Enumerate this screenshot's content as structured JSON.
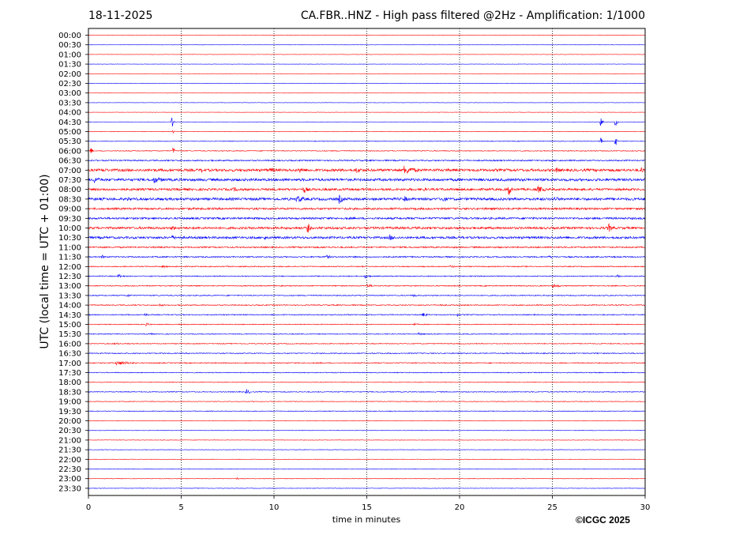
{
  "header": {
    "date": "18-11-2025",
    "title": "CA.FBR..HNZ - High pass filtered @2Hz - Amplification: 1/1000"
  },
  "footer": {
    "credit": "©ICGC 2025"
  },
  "colors": {
    "red": "#ff0000",
    "blue": "#0000ff",
    "frame": "#000000"
  },
  "chart_data": {
    "type": "line",
    "title": "CA.FBR..HNZ - High pass filtered @2Hz - Amplification: 1/1000",
    "xlabel": "time in minutes",
    "ylabel": "UTC (local time = UTC + 01:00)",
    "xlim": [
      0,
      30
    ],
    "xticks": [
      0,
      5,
      10,
      15,
      20,
      25,
      30
    ],
    "vertical_dotted_gridlines": [
      5,
      10,
      15,
      20,
      25
    ],
    "rows": [
      "00:00",
      "00:30",
      "01:00",
      "01:30",
      "02:00",
      "02:30",
      "03:00",
      "03:30",
      "04:00",
      "04:30",
      "05:00",
      "05:30",
      "06:00",
      "06:30",
      "07:00",
      "07:30",
      "08:00",
      "08:30",
      "09:00",
      "09:30",
      "10:00",
      "10:30",
      "11:00",
      "11:30",
      "12:00",
      "12:30",
      "13:00",
      "13:30",
      "14:00",
      "14:30",
      "15:00",
      "15:30",
      "16:00",
      "16:30",
      "17:00",
      "17:30",
      "18:00",
      "18:30",
      "19:00",
      "19:30",
      "20:00",
      "20:30",
      "21:00",
      "21:30",
      "22:00",
      "22:30",
      "23:00",
      "23:30"
    ],
    "row_colors": [
      "red",
      "blue"
    ],
    "row_noise": [
      0.2,
      0.2,
      0.2,
      0.2,
      0.2,
      0.2,
      0.2,
      0.2,
      0.2,
      0.2,
      0.3,
      0.4,
      0.5,
      0.8,
      1.6,
      1.6,
      1.4,
      1.6,
      1.2,
      1.2,
      1.4,
      1.4,
      0.9,
      0.8,
      0.6,
      0.6,
      0.6,
      0.6,
      0.6,
      0.6,
      0.5,
      0.5,
      0.5,
      0.6,
      0.6,
      0.5,
      0.4,
      0.5,
      0.4,
      0.4,
      0.3,
      0.3,
      0.3,
      0.3,
      0.3,
      0.3,
      0.3,
      0.3
    ],
    "events": [
      {
        "row": "04:30",
        "t": 4.5,
        "amp": 8,
        "dur": 0.1
      },
      {
        "row": "05:00",
        "t": 4.55,
        "amp": 4,
        "dur": 0.1
      },
      {
        "row": "06:00",
        "t": 0.1,
        "amp": 6,
        "dur": 0.15
      },
      {
        "row": "06:00",
        "t": 4.55,
        "amp": 9,
        "dur": 0.1
      },
      {
        "row": "04:30",
        "t": 27.6,
        "amp": 9,
        "dur": 0.1
      },
      {
        "row": "05:30",
        "t": 27.6,
        "amp": 9,
        "dur": 0.1
      },
      {
        "row": "04:30",
        "t": 28.4,
        "amp": 9,
        "dur": 0.1
      },
      {
        "row": "05:30",
        "t": 28.4,
        "amp": 9,
        "dur": 0.1
      },
      {
        "row": "07:00",
        "t": 0.8,
        "amp": 5,
        "dur": 0.2
      },
      {
        "row": "07:00",
        "t": 6.1,
        "amp": 4,
        "dur": 0.3
      },
      {
        "row": "07:00",
        "t": 9.8,
        "amp": 4,
        "dur": 0.6
      },
      {
        "row": "07:00",
        "t": 11.4,
        "amp": 5,
        "dur": 0.3
      },
      {
        "row": "07:00",
        "t": 14.4,
        "amp": 4,
        "dur": 0.8
      },
      {
        "row": "07:00",
        "t": 17.0,
        "amp": 6,
        "dur": 1.0
      },
      {
        "row": "07:00",
        "t": 19.3,
        "amp": 3,
        "dur": 0.3
      },
      {
        "row": "07:00",
        "t": 25.2,
        "amp": 4,
        "dur": 0.4
      },
      {
        "row": "07:00",
        "t": 29.8,
        "amp": 6,
        "dur": 0.2
      },
      {
        "row": "07:30",
        "t": 0.3,
        "amp": 5,
        "dur": 0.5
      },
      {
        "row": "07:30",
        "t": 3.5,
        "amp": 5,
        "dur": 0.8
      },
      {
        "row": "08:00",
        "t": 7.8,
        "amp": 3,
        "dur": 0.8
      },
      {
        "row": "08:00",
        "t": 11.6,
        "amp": 5,
        "dur": 0.4
      },
      {
        "row": "08:00",
        "t": 18.0,
        "amp": 3,
        "dur": 0.5
      },
      {
        "row": "08:00",
        "t": 22.6,
        "amp": 13,
        "dur": 0.2
      },
      {
        "row": "08:00",
        "t": 24.2,
        "amp": 5,
        "dur": 0.6
      },
      {
        "row": "08:30",
        "t": 2.1,
        "amp": 3,
        "dur": 0.6
      },
      {
        "row": "08:30",
        "t": 11.2,
        "amp": 5,
        "dur": 0.8
      },
      {
        "row": "08:30",
        "t": 13.5,
        "amp": 6,
        "dur": 0.4
      },
      {
        "row": "08:30",
        "t": 17.0,
        "amp": 5,
        "dur": 0.3
      },
      {
        "row": "08:30",
        "t": 19.0,
        "amp": 5,
        "dur": 0.5
      },
      {
        "row": "08:30",
        "t": 25.1,
        "amp": 4,
        "dur": 0.5
      },
      {
        "row": "09:00",
        "t": 5.4,
        "amp": 2,
        "dur": 1.0
      },
      {
        "row": "09:00",
        "t": 17.5,
        "amp": 2,
        "dur": 1.0
      },
      {
        "row": "10:00",
        "t": 4.5,
        "amp": 4,
        "dur": 0.3
      },
      {
        "row": "10:00",
        "t": 11.8,
        "amp": 9,
        "dur": 0.2
      },
      {
        "row": "10:00",
        "t": 28.0,
        "amp": 7,
        "dur": 0.3
      },
      {
        "row": "10:30",
        "t": 4.5,
        "amp": 3,
        "dur": 0.8
      },
      {
        "row": "10:30",
        "t": 16.2,
        "amp": 5,
        "dur": 0.4
      },
      {
        "row": "10:30",
        "t": 9.5,
        "amp": 4,
        "dur": 0.1
      },
      {
        "row": "11:30",
        "t": 0.7,
        "amp": 3,
        "dur": 0.3
      },
      {
        "row": "11:30",
        "t": 12.8,
        "amp": 3,
        "dur": 0.4
      },
      {
        "row": "11:30",
        "t": 24.8,
        "amp": 2,
        "dur": 0.4
      },
      {
        "row": "12:00",
        "t": 4.0,
        "amp": 2,
        "dur": 0.4
      },
      {
        "row": "12:00",
        "t": 19.5,
        "amp": 2,
        "dur": 0.4
      },
      {
        "row": "12:30",
        "t": 1.6,
        "amp": 3,
        "dur": 0.4
      },
      {
        "row": "12:30",
        "t": 14.9,
        "amp": 3,
        "dur": 0.4
      },
      {
        "row": "12:30",
        "t": 28.5,
        "amp": 2,
        "dur": 0.4
      },
      {
        "row": "13:00",
        "t": 15.0,
        "amp": 3,
        "dur": 0.4
      },
      {
        "row": "13:00",
        "t": 25.0,
        "amp": 3,
        "dur": 0.6
      },
      {
        "row": "13:30",
        "t": 2.1,
        "amp": 2,
        "dur": 0.4
      },
      {
        "row": "13:30",
        "t": 17.5,
        "amp": 2,
        "dur": 0.4
      },
      {
        "row": "14:00",
        "t": 3.8,
        "amp": 2,
        "dur": 0.4
      },
      {
        "row": "14:00",
        "t": 18.9,
        "amp": 2,
        "dur": 0.4
      },
      {
        "row": "14:30",
        "t": 3.0,
        "amp": 2,
        "dur": 0.4
      },
      {
        "row": "14:30",
        "t": 18.0,
        "amp": 3,
        "dur": 0.4
      },
      {
        "row": "14:30",
        "t": 19.9,
        "amp": 4,
        "dur": 0.1
      },
      {
        "row": "15:00",
        "t": 3.1,
        "amp": 2,
        "dur": 0.4
      },
      {
        "row": "15:00",
        "t": 17.5,
        "amp": 2,
        "dur": 0.4
      },
      {
        "row": "15:30",
        "t": 3.2,
        "amp": 2,
        "dur": 0.4
      },
      {
        "row": "15:30",
        "t": 17.8,
        "amp": 2,
        "dur": 0.4
      },
      {
        "row": "16:00",
        "t": 1.4,
        "amp": 2,
        "dur": 0.4
      },
      {
        "row": "17:00",
        "t": 1.5,
        "amp": 3,
        "dur": 1.2
      },
      {
        "row": "18:30",
        "t": 8.5,
        "amp": 4,
        "dur": 0.3
      },
      {
        "row": "23:00",
        "t": 8.0,
        "amp": 2,
        "dur": 0.1
      }
    ]
  }
}
